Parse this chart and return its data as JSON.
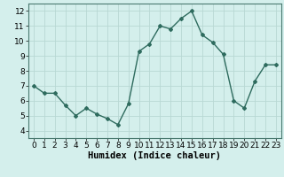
{
  "x": [
    0,
    1,
    2,
    3,
    4,
    5,
    6,
    7,
    8,
    9,
    10,
    11,
    12,
    13,
    14,
    15,
    16,
    17,
    18,
    19,
    20,
    21,
    22,
    23
  ],
  "y": [
    7.0,
    6.5,
    6.5,
    5.7,
    5.0,
    5.5,
    5.1,
    4.8,
    4.4,
    5.8,
    9.3,
    9.8,
    11.0,
    10.8,
    11.5,
    12.0,
    10.4,
    9.9,
    9.1,
    6.0,
    5.5,
    7.3,
    8.4,
    8.4
  ],
  "xlabel": "Humidex (Indice chaleur)",
  "xlim": [
    -0.5,
    23.5
  ],
  "ylim": [
    3.5,
    12.5
  ],
  "yticks": [
    4,
    5,
    6,
    7,
    8,
    9,
    10,
    11,
    12
  ],
  "xticks": [
    0,
    1,
    2,
    3,
    4,
    5,
    6,
    7,
    8,
    9,
    10,
    11,
    12,
    13,
    14,
    15,
    16,
    17,
    18,
    19,
    20,
    21,
    22,
    23
  ],
  "line_color": "#2e6b5e",
  "marker": "D",
  "marker_size": 2.0,
  "line_width": 1.0,
  "bg_color": "#d4efec",
  "grid_color": "#b8d8d4",
  "xlabel_fontsize": 7.5,
  "tick_fontsize": 6.5
}
